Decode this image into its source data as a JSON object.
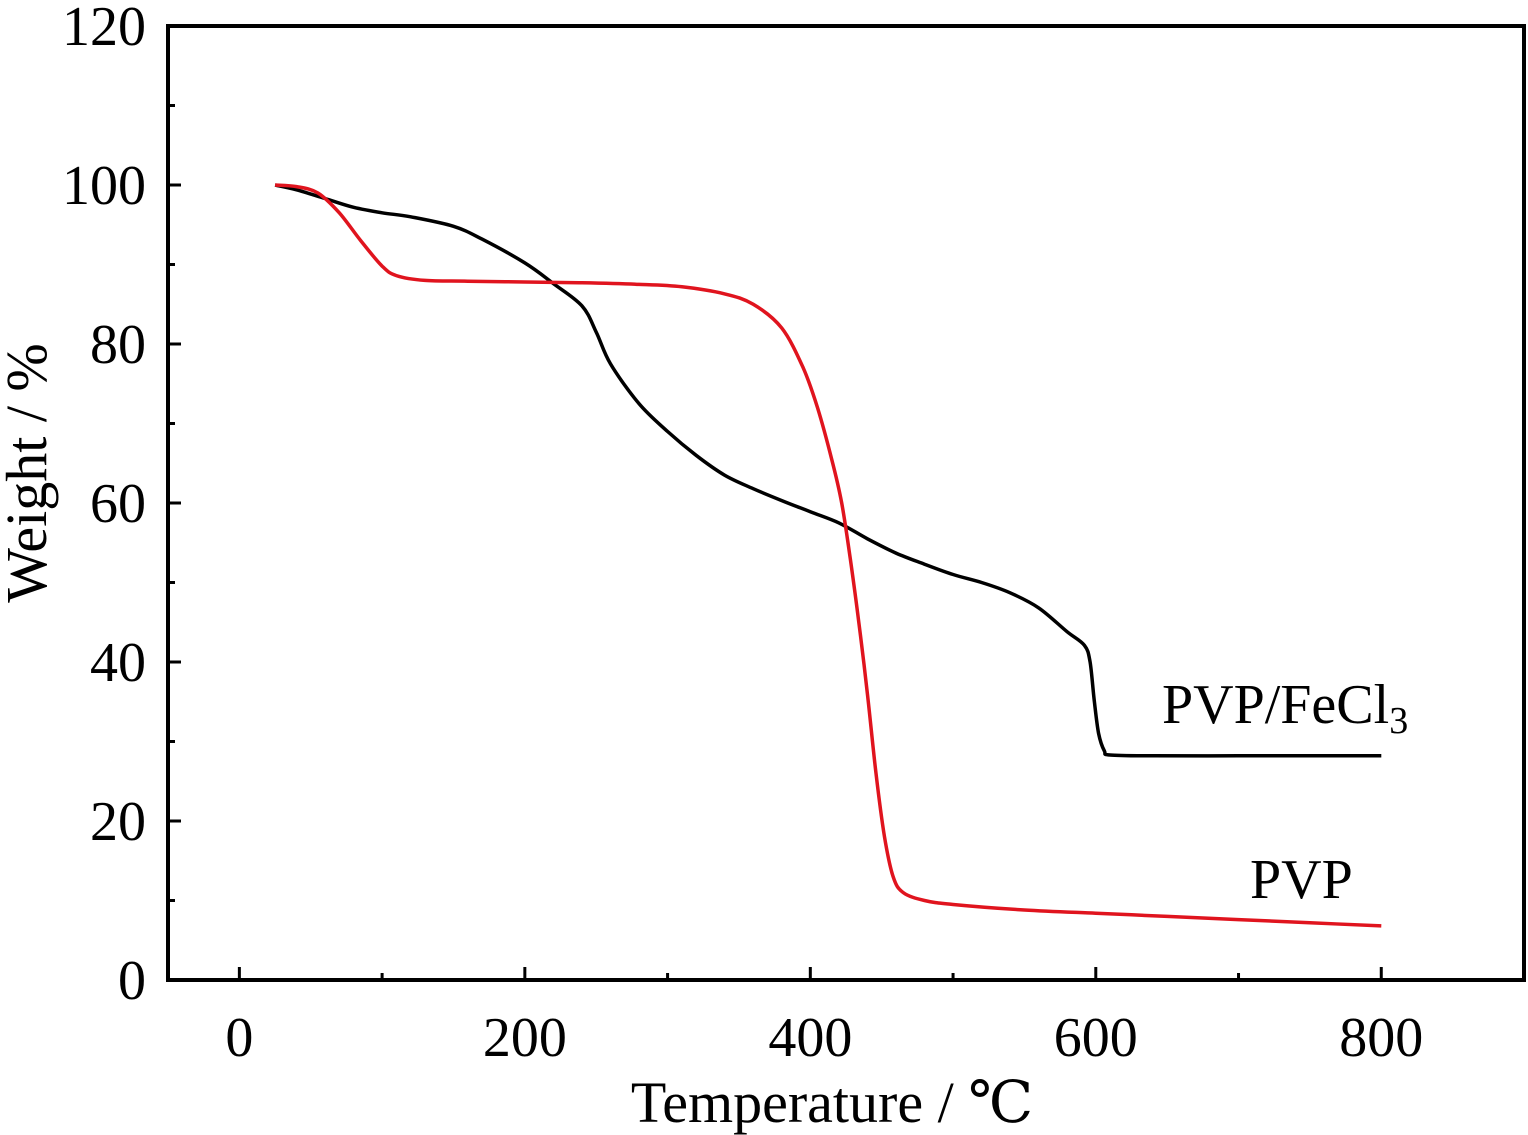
{
  "chart_data": {
    "type": "line",
    "xlabel": "Temperature / ℃",
    "ylabel": "Weight / %",
    "xlim": [
      -50,
      900
    ],
    "ylim": [
      0,
      120
    ],
    "x_ticks": [
      0,
      200,
      400,
      600,
      800
    ],
    "x_minor_ticks": [
      100,
      300,
      500,
      700
    ],
    "y_ticks": [
      0,
      20,
      40,
      60,
      80,
      100,
      120
    ],
    "y_minor_ticks": [
      10,
      30,
      50,
      70,
      90,
      110
    ],
    "x_tick_labels": [
      "0",
      "200",
      "400",
      "600",
      "800"
    ],
    "y_tick_labels": [
      "0",
      "20",
      "40",
      "60",
      "80",
      "100",
      "120"
    ],
    "grid": false,
    "series": [
      {
        "name": "PVP/FeCl3",
        "label_main": "PVP/FeCl",
        "label_sub": "3",
        "color": "#000000",
        "points": [
          [
            25,
            100
          ],
          [
            40,
            99.4
          ],
          [
            60,
            98.3
          ],
          [
            80,
            97.2
          ],
          [
            100,
            96.5
          ],
          [
            120,
            96.0
          ],
          [
            150,
            94.8
          ],
          [
            170,
            93.2
          ],
          [
            200,
            90.2
          ],
          [
            220,
            87.6
          ],
          [
            240,
            84.8
          ],
          [
            250,
            81.5
          ],
          [
            260,
            77.5
          ],
          [
            280,
            72.5
          ],
          [
            300,
            69.0
          ],
          [
            320,
            66.0
          ],
          [
            340,
            63.5
          ],
          [
            360,
            61.8
          ],
          [
            380,
            60.3
          ],
          [
            400,
            58.9
          ],
          [
            420,
            57.5
          ],
          [
            440,
            55.5
          ],
          [
            460,
            53.7
          ],
          [
            480,
            52.3
          ],
          [
            500,
            51.0
          ],
          [
            520,
            50.0
          ],
          [
            540,
            48.7
          ],
          [
            560,
            46.8
          ],
          [
            580,
            43.8
          ],
          [
            592,
            42.1
          ],
          [
            596,
            40.0
          ],
          [
            599,
            35.0
          ],
          [
            602,
            31.0
          ],
          [
            606,
            28.8
          ],
          [
            610,
            28.3
          ],
          [
            640,
            28.2
          ],
          [
            700,
            28.2
          ],
          [
            760,
            28.2
          ],
          [
            800,
            28.2
          ]
        ]
      },
      {
        "name": "PVP",
        "label_main": "PVP",
        "label_sub": "",
        "color": "#e0141e",
        "points": [
          [
            25,
            100
          ],
          [
            40,
            99.8
          ],
          [
            55,
            99.0
          ],
          [
            70,
            96.5
          ],
          [
            85,
            93.0
          ],
          [
            100,
            89.8
          ],
          [
            110,
            88.6
          ],
          [
            130,
            88.0
          ],
          [
            160,
            87.9
          ],
          [
            200,
            87.8
          ],
          [
            240,
            87.7
          ],
          [
            280,
            87.5
          ],
          [
            310,
            87.2
          ],
          [
            340,
            86.3
          ],
          [
            360,
            85.0
          ],
          [
            380,
            82.0
          ],
          [
            395,
            77.0
          ],
          [
            405,
            72.0
          ],
          [
            415,
            65.5
          ],
          [
            422,
            60.0
          ],
          [
            428,
            53.0
          ],
          [
            434,
            45.0
          ],
          [
            440,
            36.0
          ],
          [
            446,
            26.0
          ],
          [
            452,
            18.0
          ],
          [
            458,
            13.0
          ],
          [
            465,
            11.0
          ],
          [
            480,
            10.0
          ],
          [
            500,
            9.5
          ],
          [
            550,
            8.8
          ],
          [
            600,
            8.4
          ],
          [
            650,
            8.0
          ],
          [
            700,
            7.6
          ],
          [
            750,
            7.2
          ],
          [
            800,
            6.8
          ]
        ]
      }
    ]
  }
}
